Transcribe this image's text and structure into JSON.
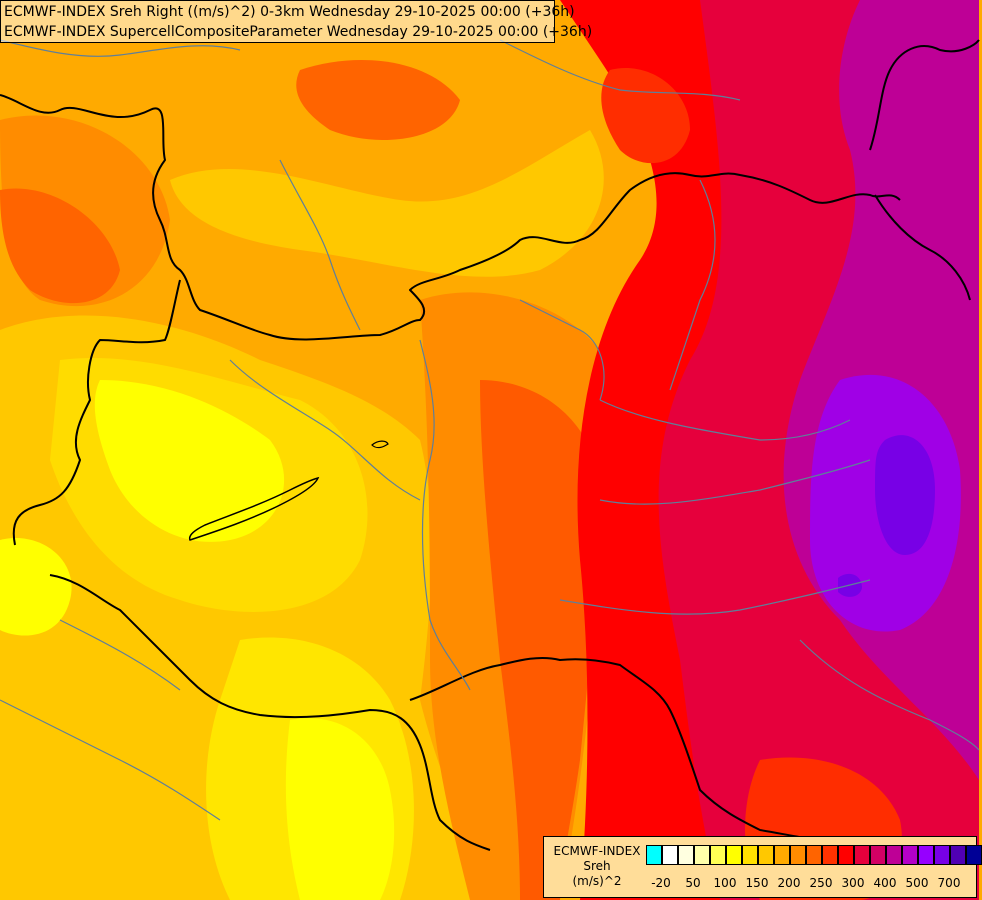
{
  "titles": {
    "line1": "ECMWF-INDEX Sreh Right ((m/s)^2) 0-3km Wednesday 29-10-2025 00:00 (+36h)",
    "line2": "ECMWF-INDEX SupercellCompositeParameter Wednesday 29-10-2025 00:00 (+36h)"
  },
  "legend": {
    "model": "ECMWF-INDEX",
    "variable": "Sreh",
    "unit": "(m/s)^2",
    "swatch_colors": [
      "#00ffff",
      "#ffffff",
      "#ffffe0",
      "#ffffaa",
      "#ffff55",
      "#ffff00",
      "#ffe000",
      "#ffc800",
      "#ffaa00",
      "#ff8c00",
      "#ff6400",
      "#ff3200",
      "#ff0000",
      "#e6003c",
      "#d20064",
      "#be0096",
      "#b400c8",
      "#9600ff",
      "#7800e6",
      "#5000b4",
      "#000096"
    ],
    "tick_labels": [
      "-20",
      "50",
      "100",
      "150",
      "200",
      "250",
      "300",
      "400",
      "500",
      "700"
    ]
  },
  "field_colors": {
    "yellow": "#ffff00",
    "gold": "#ffc800",
    "orange": "#ffaa00",
    "dark_orange": "#ff8c00",
    "red_orange": "#ff5a00",
    "red": "#ff0000",
    "crimson": "#e6003c",
    "magenta": "#be0096",
    "purple": "#a000e6",
    "indigo": "#7800e6"
  }
}
